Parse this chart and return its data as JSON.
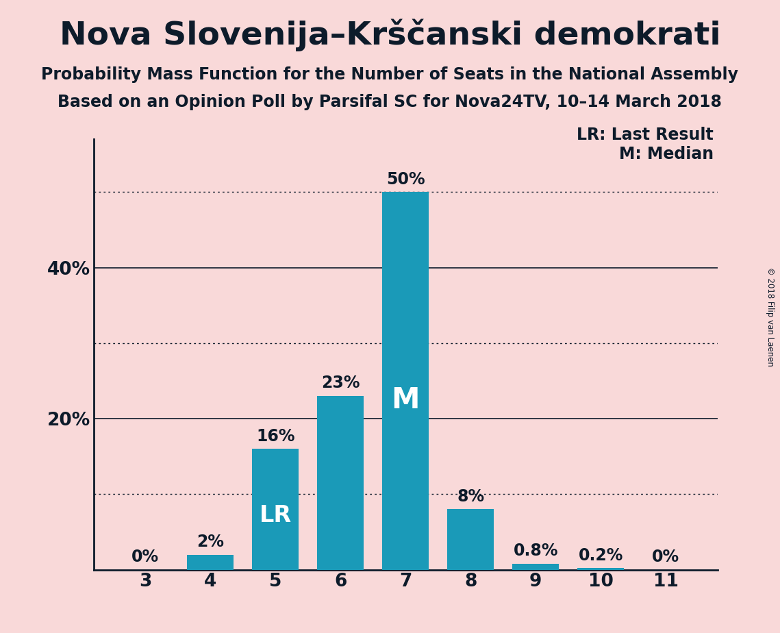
{
  "title": "Nova Slovenija–Krščanski demokrati",
  "subtitle1": "Probability Mass Function for the Number of Seats in the National Assembly",
  "subtitle2": "Based on an Opinion Poll by Parsifal SC for Nova24TV, 10–14 March 2018",
  "copyright": "© 2018 Filip van Laenen",
  "categories": [
    3,
    4,
    5,
    6,
    7,
    8,
    9,
    10,
    11
  ],
  "values": [
    0.0,
    2.0,
    16.0,
    23.0,
    50.0,
    8.0,
    0.8,
    0.2,
    0.0
  ],
  "labels": [
    "0%",
    "2%",
    "16%",
    "23%",
    "50%",
    "8%",
    "0.8%",
    "0.2%",
    "0%"
  ],
  "bar_color": "#1a9ab8",
  "background_color": "#f9d9d9",
  "text_color": "#0d1b2a",
  "lr_label": "LR",
  "median_label": "M",
  "legend_lr": "LR: Last Result",
  "legend_m": "M: Median",
  "ylim_max": 57,
  "yticks": [
    20,
    40
  ],
  "ytick_labels": [
    "20%",
    "40%"
  ],
  "hlines_solid": [
    20,
    40
  ],
  "hlines_dotted": [
    10,
    30,
    50
  ],
  "lr_seat": 5,
  "median_seat": 7,
  "title_fontsize": 34,
  "subtitle_fontsize": 17,
  "tick_fontsize": 19,
  "legend_fontsize": 17,
  "bar_label_fontsize": 17,
  "bar_inner_lr_fontsize": 24,
  "bar_inner_m_fontsize": 30
}
